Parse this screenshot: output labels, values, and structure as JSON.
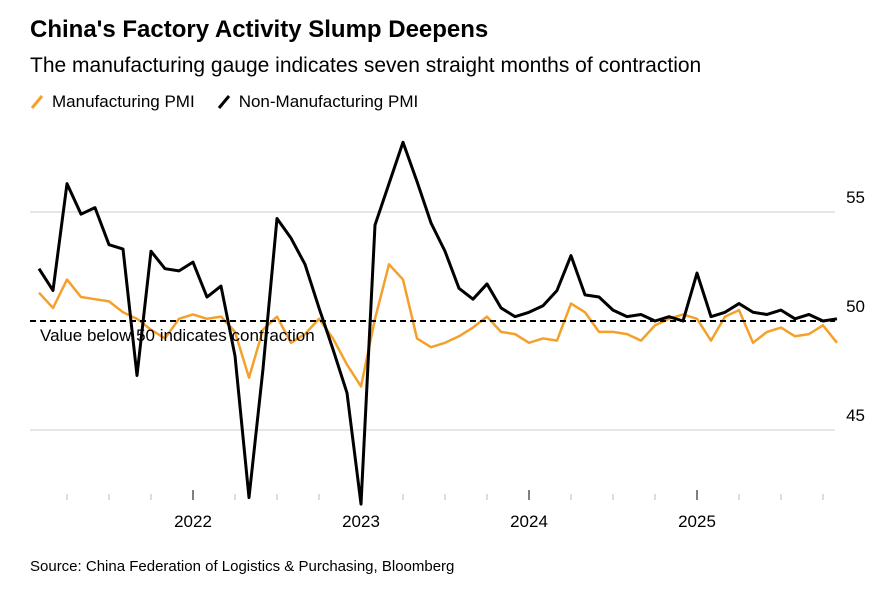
{
  "title": "China's Factory Activity Slump Deepens",
  "subtitle": "The manufacturing gauge indicates seven straight months of contraction",
  "source": "Source: China Federation of Logistics & Purchasing, Bloomberg",
  "chart_data": {
    "type": "line",
    "x_start": "2021-01",
    "x_end": "2025-10",
    "x_frequency": "monthly",
    "ylim": [
      41.5,
      58.5
    ],
    "yticks": [
      45,
      50,
      55
    ],
    "xticks": [
      "2022",
      "2023",
      "2024",
      "2025"
    ],
    "reference_line": {
      "value": 50,
      "label": "Value below 50 indicates contraction"
    },
    "legend_placement": "top-left",
    "series": [
      {
        "name": "Manufacturing PMI",
        "color": "#f5a02a",
        "values": [
          51.3,
          50.6,
          51.9,
          51.1,
          51.0,
          50.9,
          50.4,
          50.1,
          49.6,
          49.2,
          50.1,
          50.3,
          50.1,
          50.2,
          49.5,
          47.4,
          49.6,
          50.2,
          49.0,
          49.4,
          50.1,
          49.2,
          48.0,
          47.0,
          50.1,
          52.6,
          51.9,
          49.2,
          48.8,
          49.0,
          49.3,
          49.7,
          50.2,
          49.5,
          49.4,
          49.0,
          49.2,
          49.1,
          50.8,
          50.4,
          49.5,
          49.5,
          49.4,
          49.1,
          49.8,
          50.1,
          50.3,
          50.1,
          49.1,
          50.2,
          50.5,
          49.0,
          49.5,
          49.7,
          49.3,
          49.4,
          49.8,
          49.0
        ]
      },
      {
        "name": "Non-Manufacturing PMI",
        "color": "#000000",
        "values": [
          52.4,
          51.4,
          56.3,
          54.9,
          55.2,
          53.5,
          53.3,
          47.5,
          53.2,
          52.4,
          52.3,
          52.7,
          51.1,
          51.6,
          48.4,
          41.9,
          47.8,
          54.7,
          53.8,
          52.6,
          50.6,
          48.7,
          46.7,
          41.6,
          54.4,
          56.3,
          58.2,
          56.4,
          54.5,
          53.2,
          51.5,
          51.0,
          51.7,
          50.6,
          50.2,
          50.4,
          50.7,
          51.4,
          53.0,
          51.2,
          51.1,
          50.5,
          50.2,
          50.3,
          50.0,
          50.2,
          50.0,
          52.2,
          50.2,
          50.4,
          50.8,
          50.4,
          50.3,
          50.5,
          50.1,
          50.3,
          50.0,
          50.1
        ]
      }
    ]
  }
}
